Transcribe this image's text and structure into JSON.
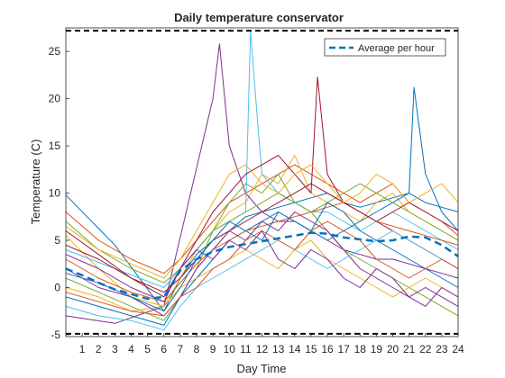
{
  "chart_data": {
    "type": "line",
    "title": "Daily temperature conservator",
    "xlabel": "Day Time",
    "ylabel": "Temperature (C)",
    "xlim": [
      0,
      24
    ],
    "ylim": [
      -5.2,
      27.5
    ],
    "xticks": [
      1,
      2,
      3,
      4,
      5,
      6,
      7,
      8,
      9,
      10,
      11,
      12,
      13,
      14,
      15,
      16,
      17,
      18,
      19,
      20,
      21,
      22,
      23,
      24
    ],
    "yticks": [
      -5,
      0,
      5,
      10,
      15,
      20,
      25
    ],
    "grid": false,
    "legend_position": "top-right",
    "legend_entries": [
      "Average per hour"
    ],
    "reference_lines": [
      {
        "y": 27.2,
        "style": "dashed",
        "color": "#000000"
      },
      {
        "y": -4.9,
        "style": "dashed",
        "color": "#000000"
      }
    ],
    "average_series": {
      "name": "Average per hour",
      "color": "#0072BD",
      "style": "dashed",
      "x": [
        0,
        1,
        2,
        3,
        4,
        5,
        6,
        7,
        8,
        9,
        10,
        11,
        12,
        13,
        14,
        15,
        16,
        17,
        18,
        19,
        20,
        21,
        22,
        23,
        24
      ],
      "y": [
        2.0,
        1.3,
        0.5,
        -0.2,
        -0.7,
        -1.2,
        -1.0,
        1.8,
        3.0,
        3.8,
        4.3,
        4.6,
        4.9,
        5.2,
        5.5,
        5.8,
        5.7,
        5.3,
        5.1,
        4.9,
        5.0,
        5.4,
        5.3,
        4.5,
        3.3
      ]
    },
    "series_colors": [
      "#0072BD",
      "#D95319",
      "#EDB120",
      "#7E2F8E",
      "#77AC30",
      "#4DBEEE",
      "#A2142F"
    ],
    "series": [
      {
        "x": [
          0,
          3,
          6,
          7,
          8,
          9,
          10,
          11,
          12,
          13,
          14,
          15,
          16,
          17,
          18,
          19,
          20,
          21,
          22,
          23,
          24
        ],
        "y": [
          9.8,
          4.5,
          -2.5,
          1.0,
          3.5,
          5.0,
          6.0,
          7.5,
          8.0,
          8.5,
          9.0,
          9.5,
          10.0,
          9.0,
          8.5,
          9.0,
          9.5,
          10.0,
          9.0,
          8.5,
          8.0
        ]
      },
      {
        "x": [
          0,
          2,
          4,
          6,
          7,
          8,
          9,
          10,
          11,
          12,
          13,
          14,
          15,
          16,
          17,
          18,
          19,
          20,
          21,
          22,
          23,
          24
        ],
        "y": [
          8.0,
          5.0,
          3.0,
          1.5,
          3.0,
          5.0,
          7.0,
          9.0,
          10.0,
          11.0,
          12.0,
          13.0,
          12.0,
          11.0,
          10.0,
          9.0,
          10.0,
          11.0,
          9.0,
          8.0,
          7.0,
          5.5
        ]
      },
      {
        "x": [
          0,
          2,
          4,
          6,
          7,
          8,
          9,
          10,
          11,
          12,
          13,
          14,
          15,
          16,
          17,
          18,
          19,
          20,
          21,
          22,
          23,
          24
        ],
        "y": [
          5.5,
          2.0,
          -1.0,
          -2.0,
          1.0,
          4.0,
          6.0,
          8.0,
          9.0,
          12.0,
          11.0,
          14.0,
          10.0,
          9.0,
          8.0,
          7.0,
          9.0,
          10.0,
          8.0,
          7.0,
          6.0,
          5.0
        ]
      },
      {
        "x": [
          0,
          3,
          6,
          9,
          9.4,
          10,
          11,
          12,
          13,
          14,
          15,
          16,
          17,
          18,
          19,
          20,
          21,
          22,
          23,
          24
        ],
        "y": [
          -3.0,
          -3.8,
          -2.0,
          20.0,
          25.8,
          15.0,
          10.0,
          8.0,
          7.0,
          7.0,
          6.0,
          5.0,
          4.0,
          3.5,
          3.0,
          3.0,
          2.5,
          2.0,
          1.5,
          1.0
        ]
      },
      {
        "x": [
          0,
          2,
          4,
          6,
          7,
          8,
          9,
          10,
          11,
          12,
          13,
          14,
          15,
          16,
          17,
          18,
          19,
          20,
          21,
          22,
          23,
          24
        ],
        "y": [
          1.0,
          -0.5,
          -2.0,
          -3.5,
          -1.0,
          2.0,
          6.0,
          9.0,
          11.0,
          10.0,
          12.0,
          9.0,
          8.0,
          6.0,
          4.0,
          3.0,
          2.0,
          1.0,
          0.0,
          -1.0,
          -2.0,
          -3.0
        ]
      },
      {
        "x": [
          0,
          3,
          6,
          7,
          8,
          9,
          10,
          11,
          11.3,
          11.8,
          12,
          13,
          14,
          15,
          16,
          17,
          18,
          19,
          20,
          21,
          22,
          23,
          24
        ],
        "y": [
          4.0,
          2.0,
          0.0,
          2.0,
          4.0,
          6.0,
          7.0,
          8.0,
          27.2,
          16.0,
          12.0,
          10.0,
          9.0,
          8.0,
          8.0,
          7.0,
          6.0,
          7.0,
          8.0,
          7.0,
          6.0,
          5.0,
          4.0
        ]
      },
      {
        "x": [
          0,
          2,
          4,
          6,
          7,
          8,
          9,
          10,
          11,
          12,
          13,
          14,
          15,
          15.4,
          16,
          17,
          18,
          19,
          20,
          21,
          22,
          23,
          24
        ],
        "y": [
          6.0,
          3.5,
          1.0,
          -1.0,
          2.0,
          5.0,
          8.0,
          10.0,
          12.0,
          13.0,
          14.0,
          12.0,
          10.0,
          22.3,
          12.0,
          9.0,
          8.0,
          7.0,
          6.0,
          5.0,
          4.0,
          3.0,
          2.0
        ]
      },
      {
        "x": [
          0,
          2,
          4,
          6,
          7,
          8,
          9,
          10,
          11,
          12,
          13,
          14,
          15,
          16,
          17,
          18,
          19,
          20,
          21,
          21.3,
          22,
          23,
          24
        ],
        "y": [
          -1.0,
          -2.0,
          -3.0,
          -4.0,
          -1.0,
          1.0,
          3.0,
          5.0,
          6.0,
          7.0,
          8.0,
          7.0,
          6.0,
          5.0,
          6.0,
          7.0,
          8.0,
          9.0,
          10.0,
          21.2,
          12.0,
          8.0,
          6.0
        ]
      },
      {
        "x": [
          0,
          2,
          4,
          6,
          7,
          8,
          9,
          10,
          11,
          12,
          13,
          14,
          15,
          16,
          17,
          18,
          19,
          20,
          21,
          22,
          23,
          24
        ],
        "y": [
          3.0,
          1.0,
          -0.5,
          -1.5,
          0.5,
          2.5,
          4.0,
          5.0,
          6.0,
          6.5,
          7.0,
          7.5,
          8.0,
          8.5,
          9.0,
          8.0,
          7.0,
          6.5,
          6.0,
          5.5,
          5.0,
          4.5
        ]
      },
      {
        "x": [
          0,
          2,
          4,
          6,
          7,
          8,
          9,
          10,
          11,
          12,
          13,
          14,
          15,
          16,
          17,
          18,
          19,
          20,
          21,
          22,
          23,
          24
        ],
        "y": [
          0.0,
          -1.0,
          -2.5,
          -2.0,
          0.0,
          1.0,
          2.0,
          3.0,
          4.0,
          3.0,
          2.0,
          4.0,
          5.0,
          3.0,
          2.0,
          1.0,
          0.0,
          -1.0,
          0.0,
          1.0,
          0.0,
          -1.0
        ]
      },
      {
        "x": [
          0,
          2,
          4,
          6,
          7,
          8,
          9,
          10,
          11,
          12,
          13,
          14,
          15,
          16,
          17,
          18,
          19,
          20,
          21,
          22,
          23,
          24
        ],
        "y": [
          2.0,
          0.0,
          -1.0,
          -3.0,
          -1.0,
          2.0,
          4.0,
          6.0,
          5.0,
          7.0,
          6.0,
          8.0,
          7.0,
          6.0,
          4.0,
          2.0,
          1.0,
          0.0,
          -1.0,
          0.0,
          -1.0,
          -2.0
        ]
      },
      {
        "x": [
          0,
          2,
          4,
          6,
          7,
          8,
          9,
          10,
          11,
          12,
          13,
          14,
          15,
          16,
          17,
          18,
          19,
          20,
          21,
          22,
          23,
          24
        ],
        "y": [
          7.0,
          4.0,
          2.0,
          0.5,
          2.0,
          4.0,
          6.0,
          7.0,
          8.0,
          9.0,
          10.0,
          9.0,
          8.0,
          9.0,
          10.0,
          11.0,
          10.0,
          9.0,
          8.0,
          7.0,
          6.0,
          5.0
        ]
      },
      {
        "x": [
          0,
          2,
          4,
          6,
          7,
          8,
          9,
          10,
          11,
          12,
          13,
          14,
          15,
          16,
          17,
          18,
          19,
          20,
          21,
          22,
          23,
          24
        ],
        "y": [
          -2.0,
          -3.0,
          -3.5,
          -4.5,
          -2.0,
          0.0,
          1.0,
          2.0,
          3.0,
          4.0,
          5.0,
          4.0,
          3.0,
          2.0,
          3.0,
          4.0,
          5.0,
          6.0,
          5.0,
          4.0,
          3.0,
          2.0
        ]
      },
      {
        "x": [
          0,
          2,
          4,
          6,
          7,
          8,
          9,
          10,
          11,
          12,
          13,
          14,
          15,
          16,
          17,
          18,
          19,
          20,
          21,
          22,
          23,
          24
        ],
        "y": [
          4.5,
          3.0,
          1.0,
          -0.5,
          1.0,
          3.0,
          5.0,
          6.0,
          7.0,
          8.0,
          9.0,
          10.0,
          11.0,
          10.0,
          9.0,
          8.0,
          7.0,
          8.0,
          9.0,
          8.0,
          7.0,
          6.0
        ]
      },
      {
        "x": [
          0,
          2,
          4,
          6,
          7,
          8,
          9,
          10,
          11,
          12,
          13,
          14,
          15,
          16,
          17,
          18,
          19,
          20,
          21,
          22,
          23,
          24
        ],
        "y": [
          1.5,
          0.5,
          -1.0,
          -2.5,
          0.0,
          3.0,
          5.0,
          7.0,
          6.0,
          5.0,
          8.0,
          7.0,
          6.0,
          9.0,
          8.0,
          6.0,
          5.0,
          4.0,
          3.0,
          2.0,
          1.0,
          0.0
        ]
      },
      {
        "x": [
          0,
          2,
          4,
          6,
          7,
          8,
          9,
          10,
          11,
          12,
          13,
          14,
          15,
          16,
          17,
          18,
          19,
          20,
          21,
          22,
          23,
          24
        ],
        "y": [
          -0.5,
          -1.5,
          -2.5,
          -3.0,
          -1.0,
          0.0,
          2.0,
          3.0,
          5.0,
          6.0,
          5.0,
          4.0,
          6.0,
          7.0,
          6.0,
          5.0,
          3.0,
          2.0,
          1.0,
          2.0,
          3.0,
          2.0
        ]
      },
      {
        "x": [
          0,
          2,
          4,
          6,
          7,
          8,
          9,
          10,
          11,
          12,
          13,
          14,
          15,
          16,
          17,
          18,
          19,
          20,
          21,
          22,
          23,
          24
        ],
        "y": [
          6.5,
          4.0,
          2.5,
          1.0,
          3.0,
          6.0,
          9.0,
          12.0,
          13.0,
          11.0,
          10.0,
          12.0,
          13.0,
          11.0,
          9.0,
          10.0,
          12.0,
          11.0,
          9.0,
          10.0,
          11.0,
          9.0
        ]
      },
      {
        "x": [
          0,
          2,
          4,
          6,
          7,
          8,
          9,
          10,
          11,
          12,
          13,
          14,
          15,
          16,
          17,
          18,
          19,
          20,
          21,
          22,
          23,
          24
        ],
        "y": [
          3.5,
          2.0,
          0.0,
          -1.5,
          2.0,
          4.0,
          3.0,
          5.0,
          4.0,
          6.0,
          3.0,
          2.0,
          4.0,
          3.0,
          1.0,
          0.0,
          2.0,
          1.0,
          -1.0,
          -2.0,
          0.0,
          -1.0
        ]
      }
    ]
  }
}
